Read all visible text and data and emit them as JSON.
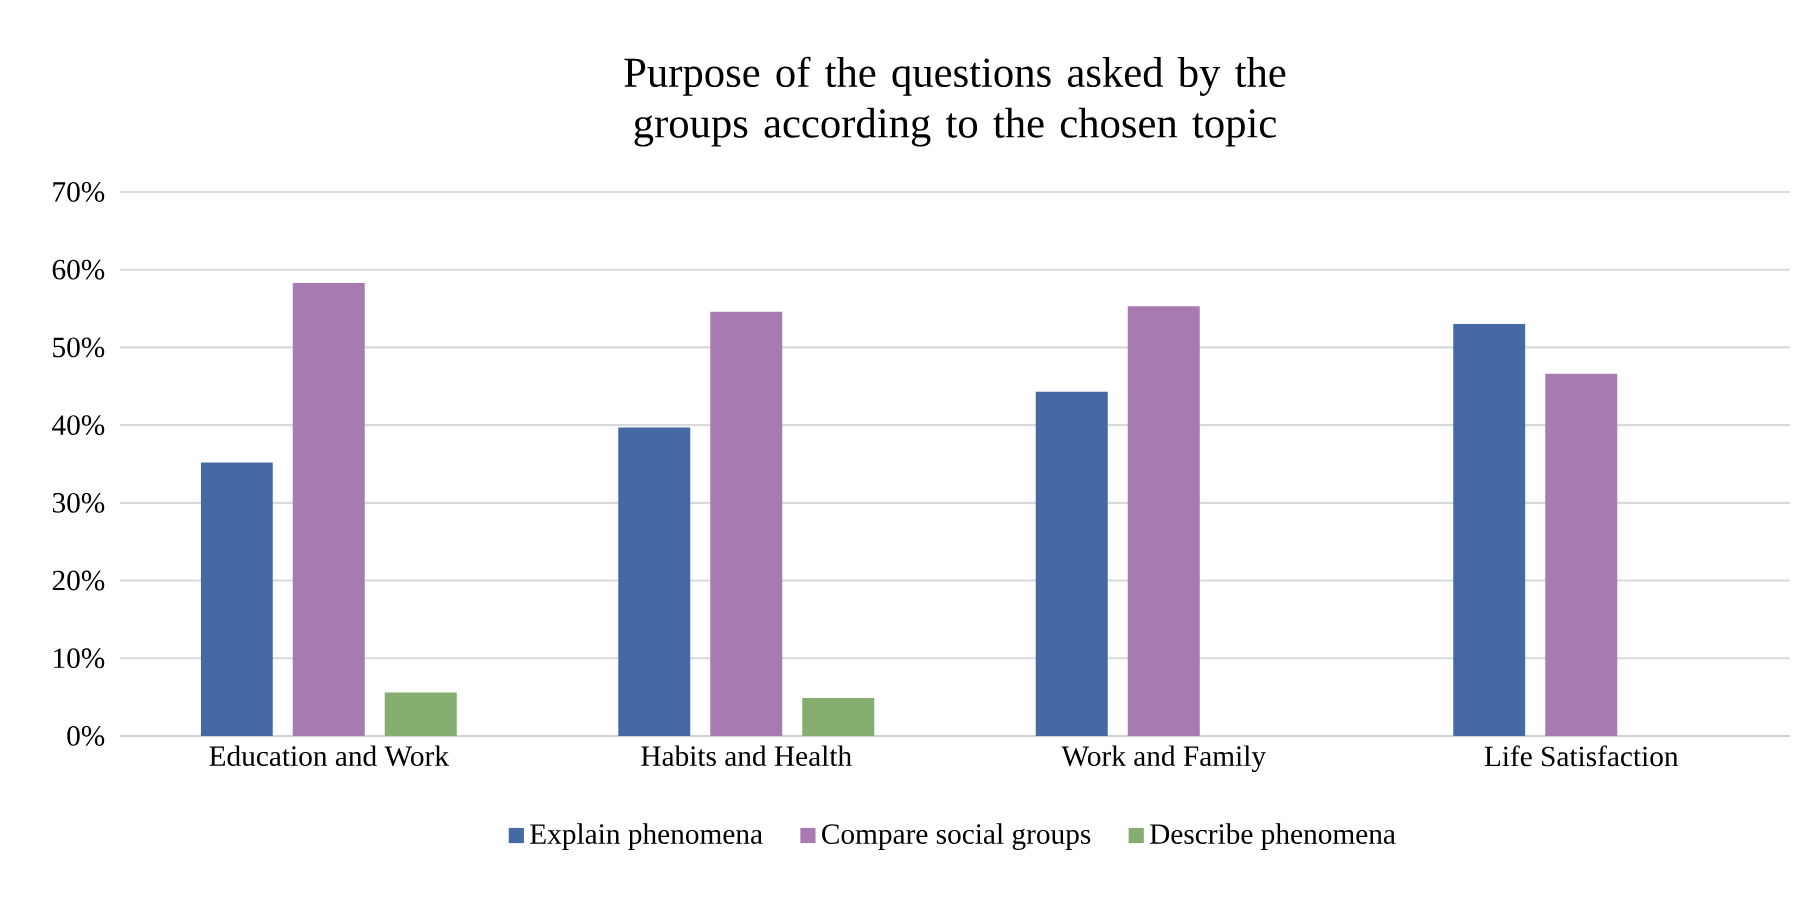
{
  "chart_data": {
    "type": "bar",
    "title": "Purpose of the questions asked by the groups according to the chosen topic",
    "categories": [
      "Education and Work",
      "Habits and Health",
      "Work and Family",
      "Life Satisfaction"
    ],
    "series": [
      {
        "name": "Explain phenomena",
        "color": "#4569a3",
        "values": [
          35.2,
          39.7,
          44.3,
          53.0
        ]
      },
      {
        "name": "Compare social groups",
        "color": "#a77bb2",
        "values": [
          58.3,
          54.6,
          55.3,
          46.6
        ]
      },
      {
        "name": "Describe phenomena",
        "color": "#85ad6f",
        "values": [
          5.6,
          4.9,
          null,
          null
        ]
      }
    ],
    "ylim": [
      0,
      70
    ],
    "yticks": [
      {
        "value": 0,
        "label": "0%"
      },
      {
        "value": 10,
        "label": "10%"
      },
      {
        "value": 20,
        "label": "20%"
      },
      {
        "value": 30,
        "label": "30%"
      },
      {
        "value": 40,
        "label": "40%"
      },
      {
        "value": 50,
        "label": "50%"
      },
      {
        "value": 60,
        "label": "60%"
      },
      {
        "value": 70,
        "label": "70%"
      }
    ],
    "grid": "y",
    "legend": "bottom"
  }
}
